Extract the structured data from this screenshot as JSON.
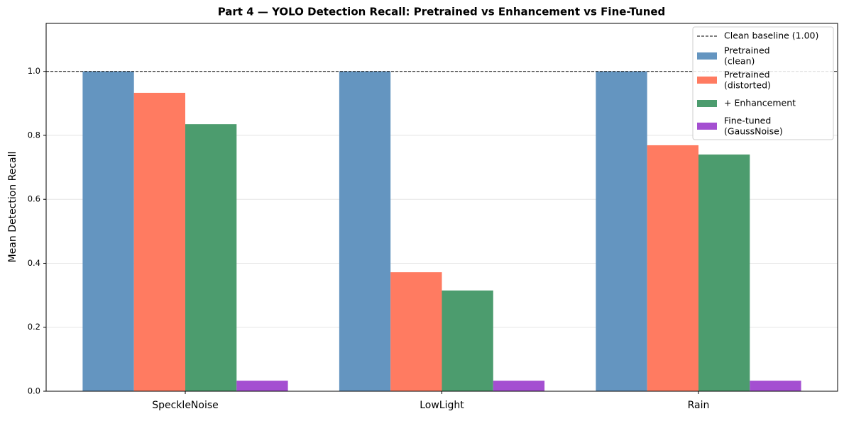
{
  "chart_data": {
    "type": "bar",
    "title": "Part 4 — YOLO Detection Recall: Pretrained vs Enhancement vs Fine-Tuned",
    "y_label": "Mean Detection Recall",
    "categories": [
      "SpeckleNoise",
      "LowLight",
      "Rain"
    ],
    "series": [
      {
        "name": "Pretrained\n(clean)",
        "color": "#6495c0",
        "values": [
          1.0,
          1.0,
          1.0
        ]
      },
      {
        "name": "Pretrained\n(distorted)",
        "color": "#ff7b61",
        "values": [
          0.933,
          0.372,
          0.769
        ]
      },
      {
        "name": "+ Enhancement",
        "color": "#4c9c6e",
        "values": [
          0.835,
          0.315,
          0.74
        ]
      },
      {
        "name": "Fine-tuned\n(GaussNoise)",
        "color": "#a44fd1",
        "values": [
          0.033,
          0.033,
          0.033
        ]
      }
    ],
    "baseline": {
      "value": 1,
      "label": "Clean baseline (1.00)"
    },
    "ylim": [
      0,
      1.15
    ],
    "yticks": [
      {
        "value": 0,
        "label": "0.0"
      },
      0.2,
      0.4,
      0.6,
      0.8,
      {
        "value": 1,
        "label": "1.0"
      }
    ],
    "grid": true,
    "legend": "upper right"
  }
}
